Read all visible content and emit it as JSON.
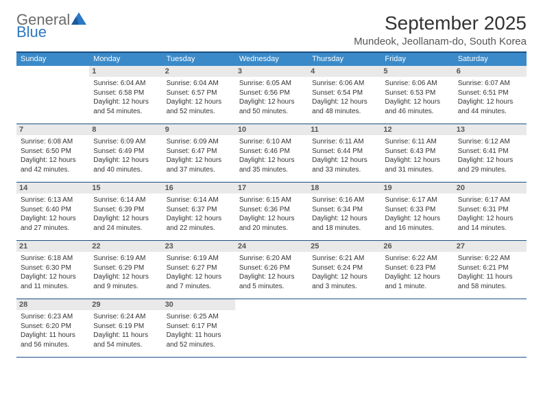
{
  "logo": {
    "general": "General",
    "blue": "Blue"
  },
  "title": "September 2025",
  "location": "Mundeok, Jeollanam-do, South Korea",
  "colors": {
    "header_bar": "#3a8ac9",
    "header_border_top": "#1a4f82",
    "week_divider": "#1a4f82",
    "daynum_bg": "#e9e9e9",
    "logo_blue": "#2b78c5",
    "logo_gray": "#6a6a6a"
  },
  "weekdays": [
    "Sunday",
    "Monday",
    "Tuesday",
    "Wednesday",
    "Thursday",
    "Friday",
    "Saturday"
  ],
  "weeks": [
    [
      {
        "empty": true
      },
      {
        "day": "1",
        "sunrise": "Sunrise: 6:04 AM",
        "sunset": "Sunset: 6:58 PM",
        "daylight1": "Daylight: 12 hours",
        "daylight2": "and 54 minutes."
      },
      {
        "day": "2",
        "sunrise": "Sunrise: 6:04 AM",
        "sunset": "Sunset: 6:57 PM",
        "daylight1": "Daylight: 12 hours",
        "daylight2": "and 52 minutes."
      },
      {
        "day": "3",
        "sunrise": "Sunrise: 6:05 AM",
        "sunset": "Sunset: 6:56 PM",
        "daylight1": "Daylight: 12 hours",
        "daylight2": "and 50 minutes."
      },
      {
        "day": "4",
        "sunrise": "Sunrise: 6:06 AM",
        "sunset": "Sunset: 6:54 PM",
        "daylight1": "Daylight: 12 hours",
        "daylight2": "and 48 minutes."
      },
      {
        "day": "5",
        "sunrise": "Sunrise: 6:06 AM",
        "sunset": "Sunset: 6:53 PM",
        "daylight1": "Daylight: 12 hours",
        "daylight2": "and 46 minutes."
      },
      {
        "day": "6",
        "sunrise": "Sunrise: 6:07 AM",
        "sunset": "Sunset: 6:51 PM",
        "daylight1": "Daylight: 12 hours",
        "daylight2": "and 44 minutes."
      }
    ],
    [
      {
        "day": "7",
        "sunrise": "Sunrise: 6:08 AM",
        "sunset": "Sunset: 6:50 PM",
        "daylight1": "Daylight: 12 hours",
        "daylight2": "and 42 minutes."
      },
      {
        "day": "8",
        "sunrise": "Sunrise: 6:09 AM",
        "sunset": "Sunset: 6:49 PM",
        "daylight1": "Daylight: 12 hours",
        "daylight2": "and 40 minutes."
      },
      {
        "day": "9",
        "sunrise": "Sunrise: 6:09 AM",
        "sunset": "Sunset: 6:47 PM",
        "daylight1": "Daylight: 12 hours",
        "daylight2": "and 37 minutes."
      },
      {
        "day": "10",
        "sunrise": "Sunrise: 6:10 AM",
        "sunset": "Sunset: 6:46 PM",
        "daylight1": "Daylight: 12 hours",
        "daylight2": "and 35 minutes."
      },
      {
        "day": "11",
        "sunrise": "Sunrise: 6:11 AM",
        "sunset": "Sunset: 6:44 PM",
        "daylight1": "Daylight: 12 hours",
        "daylight2": "and 33 minutes."
      },
      {
        "day": "12",
        "sunrise": "Sunrise: 6:11 AM",
        "sunset": "Sunset: 6:43 PM",
        "daylight1": "Daylight: 12 hours",
        "daylight2": "and 31 minutes."
      },
      {
        "day": "13",
        "sunrise": "Sunrise: 6:12 AM",
        "sunset": "Sunset: 6:41 PM",
        "daylight1": "Daylight: 12 hours",
        "daylight2": "and 29 minutes."
      }
    ],
    [
      {
        "day": "14",
        "sunrise": "Sunrise: 6:13 AM",
        "sunset": "Sunset: 6:40 PM",
        "daylight1": "Daylight: 12 hours",
        "daylight2": "and 27 minutes."
      },
      {
        "day": "15",
        "sunrise": "Sunrise: 6:14 AM",
        "sunset": "Sunset: 6:39 PM",
        "daylight1": "Daylight: 12 hours",
        "daylight2": "and 24 minutes."
      },
      {
        "day": "16",
        "sunrise": "Sunrise: 6:14 AM",
        "sunset": "Sunset: 6:37 PM",
        "daylight1": "Daylight: 12 hours",
        "daylight2": "and 22 minutes."
      },
      {
        "day": "17",
        "sunrise": "Sunrise: 6:15 AM",
        "sunset": "Sunset: 6:36 PM",
        "daylight1": "Daylight: 12 hours",
        "daylight2": "and 20 minutes."
      },
      {
        "day": "18",
        "sunrise": "Sunrise: 6:16 AM",
        "sunset": "Sunset: 6:34 PM",
        "daylight1": "Daylight: 12 hours",
        "daylight2": "and 18 minutes."
      },
      {
        "day": "19",
        "sunrise": "Sunrise: 6:17 AM",
        "sunset": "Sunset: 6:33 PM",
        "daylight1": "Daylight: 12 hours",
        "daylight2": "and 16 minutes."
      },
      {
        "day": "20",
        "sunrise": "Sunrise: 6:17 AM",
        "sunset": "Sunset: 6:31 PM",
        "daylight1": "Daylight: 12 hours",
        "daylight2": "and 14 minutes."
      }
    ],
    [
      {
        "day": "21",
        "sunrise": "Sunrise: 6:18 AM",
        "sunset": "Sunset: 6:30 PM",
        "daylight1": "Daylight: 12 hours",
        "daylight2": "and 11 minutes."
      },
      {
        "day": "22",
        "sunrise": "Sunrise: 6:19 AM",
        "sunset": "Sunset: 6:29 PM",
        "daylight1": "Daylight: 12 hours",
        "daylight2": "and 9 minutes."
      },
      {
        "day": "23",
        "sunrise": "Sunrise: 6:19 AM",
        "sunset": "Sunset: 6:27 PM",
        "daylight1": "Daylight: 12 hours",
        "daylight2": "and 7 minutes."
      },
      {
        "day": "24",
        "sunrise": "Sunrise: 6:20 AM",
        "sunset": "Sunset: 6:26 PM",
        "daylight1": "Daylight: 12 hours",
        "daylight2": "and 5 minutes."
      },
      {
        "day": "25",
        "sunrise": "Sunrise: 6:21 AM",
        "sunset": "Sunset: 6:24 PM",
        "daylight1": "Daylight: 12 hours",
        "daylight2": "and 3 minutes."
      },
      {
        "day": "26",
        "sunrise": "Sunrise: 6:22 AM",
        "sunset": "Sunset: 6:23 PM",
        "daylight1": "Daylight: 12 hours",
        "daylight2": "and 1 minute."
      },
      {
        "day": "27",
        "sunrise": "Sunrise: 6:22 AM",
        "sunset": "Sunset: 6:21 PM",
        "daylight1": "Daylight: 11 hours",
        "daylight2": "and 58 minutes."
      }
    ],
    [
      {
        "day": "28",
        "sunrise": "Sunrise: 6:23 AM",
        "sunset": "Sunset: 6:20 PM",
        "daylight1": "Daylight: 11 hours",
        "daylight2": "and 56 minutes."
      },
      {
        "day": "29",
        "sunrise": "Sunrise: 6:24 AM",
        "sunset": "Sunset: 6:19 PM",
        "daylight1": "Daylight: 11 hours",
        "daylight2": "and 54 minutes."
      },
      {
        "day": "30",
        "sunrise": "Sunrise: 6:25 AM",
        "sunset": "Sunset: 6:17 PM",
        "daylight1": "Daylight: 11 hours",
        "daylight2": "and 52 minutes."
      },
      {
        "empty": true
      },
      {
        "empty": true
      },
      {
        "empty": true
      },
      {
        "empty": true
      }
    ]
  ]
}
